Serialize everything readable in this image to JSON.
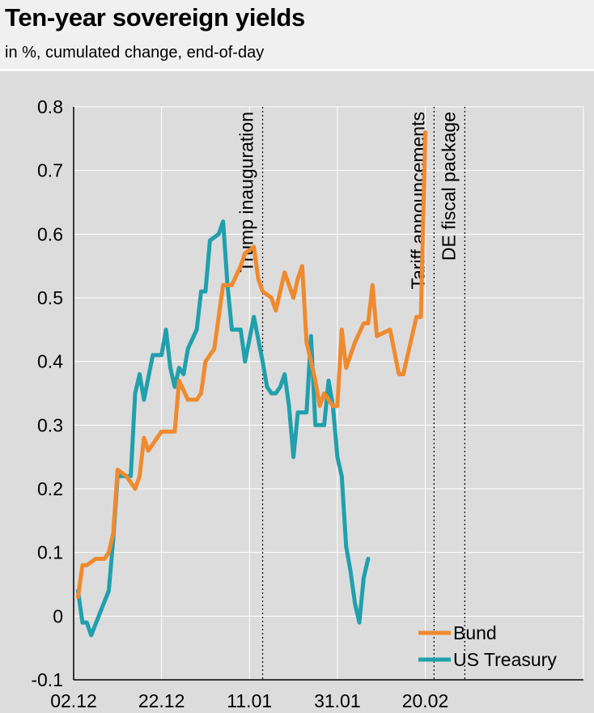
{
  "chart_data": {
    "type": "line",
    "title": "Ten-year sovereign yields",
    "subtitle": "in %, cumulated change, end-of-day",
    "ylim": [
      -0.1,
      0.8
    ],
    "yticks": [
      "-0.1",
      "0",
      "0.1",
      "0.2",
      "0.3",
      "0.4",
      "0.5",
      "0.6",
      "0.7",
      "0.8"
    ],
    "ytick_values": [
      -0.1,
      0,
      0.1,
      0.2,
      0.3,
      0.4,
      0.5,
      0.6,
      0.7,
      0.8
    ],
    "xlim_days": [
      0,
      116
    ],
    "xticks": [
      {
        "label": "02.12",
        "day": 0
      },
      {
        "label": "22.12",
        "day": 20
      },
      {
        "label": "11.01",
        "day": 40
      },
      {
        "label": "31.01",
        "day": 60
      },
      {
        "label": "20.02",
        "day": 80
      }
    ],
    "annotations": [
      {
        "label": "Trump inauguration",
        "day": 43
      },
      {
        "label": "Tariff announcements",
        "day": 82
      },
      {
        "label": "DE fiscal package",
        "day": 89
      }
    ],
    "series": [
      {
        "name": "Bund",
        "color": "#ef8a2e",
        "points": [
          [
            1,
            0.03
          ],
          [
            2,
            0.08
          ],
          [
            3,
            0.08
          ],
          [
            5,
            0.09
          ],
          [
            7,
            0.09
          ],
          [
            8,
            0.1
          ],
          [
            9,
            0.13
          ],
          [
            10,
            0.23
          ],
          [
            12,
            0.22
          ],
          [
            14,
            0.2
          ],
          [
            15,
            0.22
          ],
          [
            16,
            0.28
          ],
          [
            17,
            0.26
          ],
          [
            20,
            0.29
          ],
          [
            23,
            0.29
          ],
          [
            24,
            0.37
          ],
          [
            26,
            0.34
          ],
          [
            28,
            0.34
          ],
          [
            29,
            0.35
          ],
          [
            30,
            0.4
          ],
          [
            32,
            0.42
          ],
          [
            33,
            0.47
          ],
          [
            34,
            0.52
          ],
          [
            36,
            0.52
          ],
          [
            38,
            0.55
          ],
          [
            39,
            0.57
          ],
          [
            41,
            0.58
          ],
          [
            42,
            0.53
          ],
          [
            43,
            0.51
          ],
          [
            45,
            0.5
          ],
          [
            46,
            0.48
          ],
          [
            48,
            0.54
          ],
          [
            50,
            0.5
          ],
          [
            51,
            0.53
          ],
          [
            52,
            0.55
          ],
          [
            53,
            0.43
          ],
          [
            54,
            0.4
          ],
          [
            55,
            0.37
          ],
          [
            56,
            0.33
          ],
          [
            57,
            0.35
          ],
          [
            58,
            0.34
          ],
          [
            59,
            0.33
          ],
          [
            60,
            0.33
          ],
          [
            61,
            0.45
          ],
          [
            62,
            0.39
          ],
          [
            64,
            0.43
          ],
          [
            66,
            0.46
          ],
          [
            67,
            0.46
          ],
          [
            68,
            0.52
          ],
          [
            69,
            0.44
          ],
          [
            72,
            0.45
          ],
          [
            74,
            0.38
          ],
          [
            75,
            0.38
          ],
          [
            77,
            0.44
          ],
          [
            78,
            0.47
          ],
          [
            79,
            0.47
          ],
          [
            80,
            0.76
          ]
        ]
      },
      {
        "name": "US Treasury",
        "color": "#20a0ad",
        "points": [
          [
            1,
            0.04
          ],
          [
            2,
            -0.01
          ],
          [
            3,
            -0.01
          ],
          [
            4,
            -0.03
          ],
          [
            8,
            0.04
          ],
          [
            9,
            0.12
          ],
          [
            10,
            0.22
          ],
          [
            12,
            0.22
          ],
          [
            13,
            0.22
          ],
          [
            14,
            0.35
          ],
          [
            15,
            0.38
          ],
          [
            16,
            0.34
          ],
          [
            18,
            0.41
          ],
          [
            20,
            0.41
          ],
          [
            21,
            0.45
          ],
          [
            22,
            0.39
          ],
          [
            23,
            0.36
          ],
          [
            24,
            0.39
          ],
          [
            25,
            0.38
          ],
          [
            26,
            0.42
          ],
          [
            28,
            0.45
          ],
          [
            29,
            0.51
          ],
          [
            30,
            0.51
          ],
          [
            31,
            0.59
          ],
          [
            33,
            0.6
          ],
          [
            34,
            0.62
          ],
          [
            35,
            0.52
          ],
          [
            36,
            0.45
          ],
          [
            38,
            0.45
          ],
          [
            39,
            0.4
          ],
          [
            41,
            0.47
          ],
          [
            43,
            0.4
          ],
          [
            44,
            0.36
          ],
          [
            45,
            0.35
          ],
          [
            46,
            0.35
          ],
          [
            47,
            0.36
          ],
          [
            48,
            0.38
          ],
          [
            49,
            0.33
          ],
          [
            50,
            0.25
          ],
          [
            51,
            0.32
          ],
          [
            52,
            0.32
          ],
          [
            53,
            0.32
          ],
          [
            54,
            0.44
          ],
          [
            55,
            0.3
          ],
          [
            56,
            0.3
          ],
          [
            57,
            0.3
          ],
          [
            58,
            0.37
          ],
          [
            59,
            0.33
          ],
          [
            60,
            0.25
          ],
          [
            61,
            0.22
          ],
          [
            62,
            0.11
          ],
          [
            63,
            0.07
          ],
          [
            64,
            0.02
          ],
          [
            65,
            -0.01
          ],
          [
            66,
            0.06
          ],
          [
            67,
            0.09
          ]
        ]
      }
    ],
    "legend": [
      "Bund",
      "US Treasury"
    ],
    "colors": {
      "grid": "#ffffff",
      "plot_bg": "#dcdcdc",
      "annotation_line": "#000000"
    }
  }
}
